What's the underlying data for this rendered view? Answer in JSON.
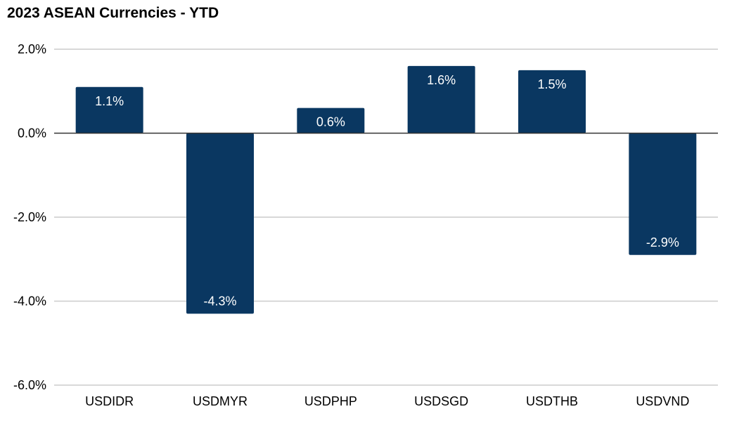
{
  "chart_data": {
    "type": "bar",
    "title": "2023 ASEAN Currencies - YTD",
    "xlabel": "",
    "ylabel": "",
    "categories": [
      "USDIDR",
      "USDMYR",
      "USDPHP",
      "USDSGD",
      "USDTHB",
      "USDVND"
    ],
    "values": [
      1.1,
      -4.3,
      0.6,
      1.6,
      1.5,
      -2.9
    ],
    "data_labels": [
      "1.1%",
      "-4.3%",
      "0.6%",
      "1.6%",
      "1.5%",
      "-2.9%"
    ],
    "ylim": [
      -6.0,
      2.0
    ],
    "yticks": [
      2.0,
      0.0,
      -2.0,
      -4.0,
      -6.0
    ],
    "ytick_labels": [
      "2.0%",
      "0.0%",
      "-2.0%",
      "-4.0%",
      "-6.0%"
    ],
    "grid": true,
    "legend": "none",
    "bar_color": "#0a3761",
    "grid_color": "#cccccc",
    "zero_line_color": "#333333"
  }
}
